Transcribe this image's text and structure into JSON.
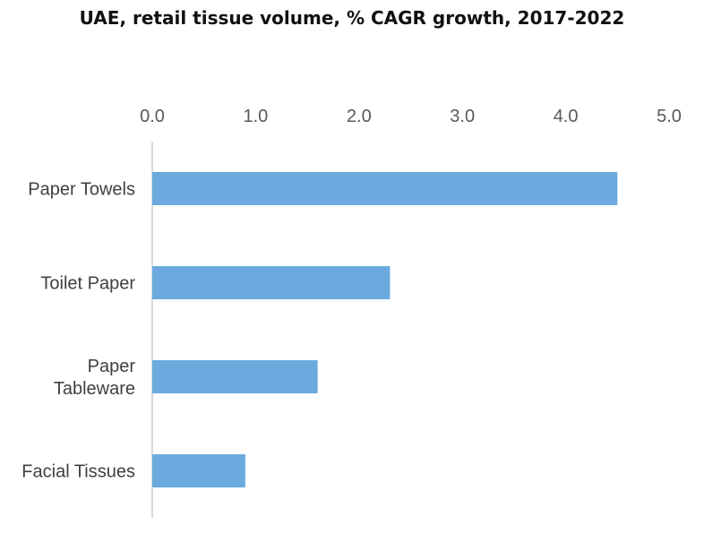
{
  "chart_data": {
    "type": "bar",
    "orientation": "horizontal",
    "title": "UAE, retail tissue volume, % CAGR growth, 2017-2022",
    "categories": [
      [
        "Paper Towels"
      ],
      [
        "Toilet Paper"
      ],
      [
        "Paper",
        "Tableware"
      ],
      [
        "Facial Tissues"
      ]
    ],
    "values": [
      4.5,
      2.3,
      1.6,
      0.9
    ],
    "xlim": [
      0,
      5
    ],
    "ticks": [
      "0.0",
      "1.0",
      "2.0",
      "3.0",
      "4.0",
      "5.0"
    ],
    "tick_values": [
      0,
      1,
      2,
      3,
      4,
      5
    ],
    "axis_position": "top",
    "grid": false,
    "bar_color": "#6aaade",
    "axis_color": "#d9d9d9"
  }
}
